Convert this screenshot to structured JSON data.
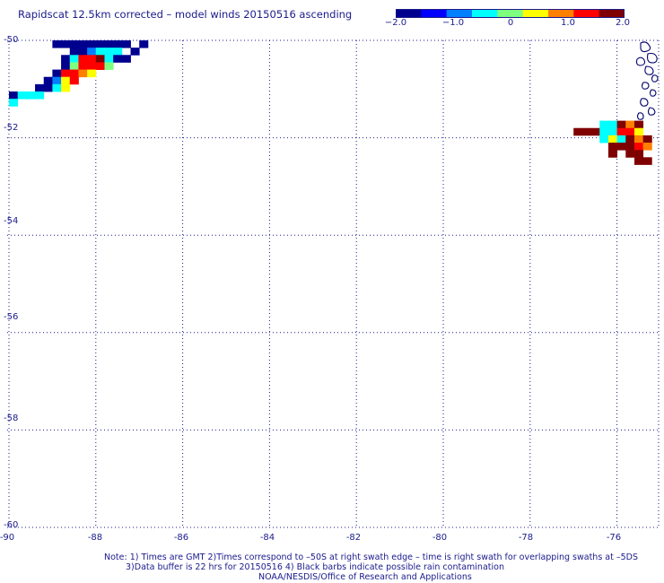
{
  "title": "Rapidscat 12.5km corrected – model winds 20150516 ascending",
  "colorbar": {
    "min": -2.0,
    "max": 2.0,
    "tick_labels": [
      "−2.0",
      "−1.0",
      "0",
      "1.0",
      "2.0"
    ],
    "colors": [
      "#00008f",
      "#0000ff",
      "#007fff",
      "#00ffff",
      "#7fff7f",
      "#ffff00",
      "#ff7f00",
      "#ff0000",
      "#7f0000"
    ]
  },
  "map": {
    "lat_labels": [
      "-50",
      "-52",
      "-54",
      "-56",
      "-58",
      "-60"
    ],
    "lon_labels": [
      "-90",
      "-88",
      "-86",
      "-84",
      "-82",
      "-80",
      "-78",
      "-76"
    ],
    "lat_range": [
      -60,
      -50
    ],
    "lon_range": [
      -90,
      -75
    ],
    "gridline_color": "#1a1a8c",
    "land_outline_color": "#00006a"
  },
  "swath_cells": [
    {
      "lon": -89.0,
      "lat": -50.0,
      "v": -2.2
    },
    {
      "lon": -88.8,
      "lat": -50.0,
      "v": -2.2
    },
    {
      "lon": -88.6,
      "lat": -50.0,
      "v": -2.2
    },
    {
      "lon": -88.4,
      "lat": -50.0,
      "v": -2.2
    },
    {
      "lon": -88.2,
      "lat": -50.0,
      "v": -2.2
    },
    {
      "lon": -88.0,
      "lat": -50.0,
      "v": -2.2
    },
    {
      "lon": -87.8,
      "lat": -50.0,
      "v": -2.2
    },
    {
      "lon": -87.6,
      "lat": -50.0,
      "v": -2.2
    },
    {
      "lon": -87.4,
      "lat": -50.0,
      "v": -2.2
    },
    {
      "lon": -87.0,
      "lat": -50.0,
      "v": -2.2
    },
    {
      "lon": -88.6,
      "lat": -50.15,
      "v": -1.8
    },
    {
      "lon": -88.4,
      "lat": -50.15,
      "v": -1.8
    },
    {
      "lon": -88.2,
      "lat": -50.15,
      "v": -0.8
    },
    {
      "lon": -88.0,
      "lat": -50.15,
      "v": -0.6
    },
    {
      "lon": -87.8,
      "lat": -50.15,
      "v": -0.6
    },
    {
      "lon": -87.6,
      "lat": -50.15,
      "v": -0.6
    },
    {
      "lon": -87.2,
      "lat": -50.15,
      "v": -2.2
    },
    {
      "lon": -88.8,
      "lat": -50.3,
      "v": -2.2
    },
    {
      "lon": -88.6,
      "lat": -50.3,
      "v": -0.6
    },
    {
      "lon": -88.4,
      "lat": -50.3,
      "v": 1.5
    },
    {
      "lon": -88.2,
      "lat": -50.3,
      "v": 1.4
    },
    {
      "lon": -88.0,
      "lat": -50.3,
      "v": 1.6
    },
    {
      "lon": -87.8,
      "lat": -50.3,
      "v": -0.3
    },
    {
      "lon": -87.6,
      "lat": -50.3,
      "v": -2.0
    },
    {
      "lon": -87.4,
      "lat": -50.3,
      "v": -2.0
    },
    {
      "lon": -88.8,
      "lat": -50.45,
      "v": -2.2
    },
    {
      "lon": -88.6,
      "lat": -50.45,
      "v": 0.2
    },
    {
      "lon": -88.4,
      "lat": -50.45,
      "v": 1.2
    },
    {
      "lon": -88.2,
      "lat": -50.45,
      "v": 1.2
    },
    {
      "lon": -88.0,
      "lat": -50.45,
      "v": 1.3
    },
    {
      "lon": -87.8,
      "lat": -50.45,
      "v": 0.2
    },
    {
      "lon": -89.0,
      "lat": -50.6,
      "v": -2.2
    },
    {
      "lon": -88.8,
      "lat": -50.6,
      "v": 1.4
    },
    {
      "lon": -88.6,
      "lat": -50.6,
      "v": 1.5
    },
    {
      "lon": -88.4,
      "lat": -50.6,
      "v": 1.0
    },
    {
      "lon": -88.2,
      "lat": -50.6,
      "v": 0.5
    },
    {
      "lon": -89.2,
      "lat": -50.75,
      "v": -2.0
    },
    {
      "lon": -89.0,
      "lat": -50.75,
      "v": -1.0
    },
    {
      "lon": -88.8,
      "lat": -50.75,
      "v": 0.5
    },
    {
      "lon": -88.6,
      "lat": -50.75,
      "v": 1.5
    },
    {
      "lon": -89.4,
      "lat": -50.9,
      "v": -2.0
    },
    {
      "lon": -89.2,
      "lat": -50.9,
      "v": -1.8
    },
    {
      "lon": -89.0,
      "lat": -50.9,
      "v": -0.6
    },
    {
      "lon": -88.8,
      "lat": -50.9,
      "v": 0.4
    },
    {
      "lon": -90.0,
      "lat": -51.05,
      "v": -2.2
    },
    {
      "lon": -89.8,
      "lat": -51.05,
      "v": -0.6
    },
    {
      "lon": -89.6,
      "lat": -51.05,
      "v": -0.6
    },
    {
      "lon": -89.4,
      "lat": -51.05,
      "v": -0.6
    },
    {
      "lon": -90.0,
      "lat": -51.2,
      "v": -0.6
    },
    {
      "lon": -76.4,
      "lat": -51.65,
      "v": -0.6
    },
    {
      "lon": -76.2,
      "lat": -51.65,
      "v": -0.6
    },
    {
      "lon": -76.0,
      "lat": -51.65,
      "v": 2.2
    },
    {
      "lon": -75.8,
      "lat": -51.65,
      "v": 0.8
    },
    {
      "lon": -75.6,
      "lat": -51.65,
      "v": 2.2
    },
    {
      "lon": -77.0,
      "lat": -51.8,
      "v": 2.2
    },
    {
      "lon": -76.8,
      "lat": -51.8,
      "v": 1.7
    },
    {
      "lon": -76.6,
      "lat": -51.8,
      "v": 1.7
    },
    {
      "lon": -76.4,
      "lat": -51.8,
      "v": -0.6
    },
    {
      "lon": -76.2,
      "lat": -51.8,
      "v": -0.6
    },
    {
      "lon": -76.0,
      "lat": -51.8,
      "v": 1.4
    },
    {
      "lon": -75.8,
      "lat": -51.8,
      "v": 1.5
    },
    {
      "lon": -75.6,
      "lat": -51.8,
      "v": 0.6
    },
    {
      "lon": -76.4,
      "lat": -51.95,
      "v": -0.4
    },
    {
      "lon": -76.2,
      "lat": -51.95,
      "v": 0.6
    },
    {
      "lon": -76.0,
      "lat": -51.95,
      "v": -0.5
    },
    {
      "lon": -75.8,
      "lat": -51.95,
      "v": 2.2
    },
    {
      "lon": -75.6,
      "lat": -51.95,
      "v": 0.8
    },
    {
      "lon": -75.4,
      "lat": -51.95,
      "v": 1.7
    },
    {
      "lon": -76.2,
      "lat": -52.1,
      "v": 2.2
    },
    {
      "lon": -76.0,
      "lat": -52.1,
      "v": 1.6
    },
    {
      "lon": -75.8,
      "lat": -52.1,
      "v": 2.2
    },
    {
      "lon": -75.6,
      "lat": -52.1,
      "v": 1.5
    },
    {
      "lon": -75.4,
      "lat": -52.1,
      "v": 0.9
    },
    {
      "lon": -76.2,
      "lat": -52.25,
      "v": 2.2
    },
    {
      "lon": -75.8,
      "lat": -52.25,
      "v": 2.2
    },
    {
      "lon": -75.6,
      "lat": -52.25,
      "v": 2.2
    },
    {
      "lon": -75.4,
      "lat": -52.4,
      "v": 2.2
    },
    {
      "lon": -75.6,
      "lat": -52.4,
      "v": 2.2
    }
  ],
  "notes": {
    "line1": "Note: 1) Times are GMT 2)Times correspond to –50S at right swath edge – time is right swath for overlapping swaths at –5DS",
    "line2": "3)Data buffer is 22 hrs for 20150516 4) Black barbs indicate possible rain contamination",
    "line3": "NOAA/NESDIS/Office of Research and Applications"
  }
}
